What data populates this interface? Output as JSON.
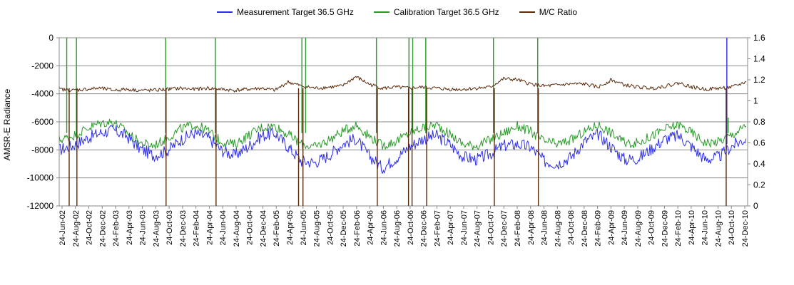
{
  "legend": [
    {
      "label": "Measurement Target 36.5 GHz",
      "color": "#2d2df0"
    },
    {
      "label": "Calibration Target 36.5 GHz",
      "color": "#2a9a2a"
    },
    {
      "label": "M/C Ratio",
      "color": "#5a2a0a"
    }
  ],
  "chart_data": {
    "type": "line",
    "title": "",
    "ylabel": "AMSR-E Radiance",
    "y2label": "",
    "ylim": [
      -12000,
      0
    ],
    "y2lim": [
      0,
      1.6
    ],
    "yticks": [
      "0",
      "-2000",
      "-4000",
      "-6000",
      "-8000",
      "-10000",
      "-12000"
    ],
    "y2ticks": [
      "1.6",
      "1.4",
      "1.2",
      "1",
      "0.8",
      "0.6",
      "0.4",
      "0.2",
      "0"
    ],
    "x_range": [
      "2002-06-24",
      "2010-12-31"
    ],
    "x_tick_labels": [
      "24-Jun-02",
      "24-Aug-02",
      "24-Oct-02",
      "24-Dec-02",
      "24-Feb-03",
      "24-Apr-03",
      "24-Jun-03",
      "24-Aug-03",
      "24-Oct-03",
      "24-Dec-03",
      "24-Feb-04",
      "24-Apr-04",
      "24-Jun-04",
      "24-Aug-04",
      "24-Oct-04",
      "24-Dec-04",
      "24-Feb-05",
      "24-Apr-05",
      "24-Jun-05",
      "24-Aug-05",
      "24-Oct-05",
      "24-Dec-05",
      "24-Feb-06",
      "24-Apr-06",
      "24-Jun-06",
      "24-Aug-06",
      "24-Oct-06",
      "24-Dec-06",
      "24-Feb-07",
      "24-Apr-07",
      "24-Jun-07",
      "24-Aug-07",
      "24-Oct-07",
      "24-Dec-07",
      "24-Feb-08",
      "24-Apr-08",
      "24-Jun-08",
      "24-Aug-08",
      "24-Oct-08",
      "24-Dec-08",
      "24-Feb-09",
      "24-Apr-09",
      "24-Jun-09",
      "24-Aug-09",
      "24-Oct-09",
      "24-Dec-09",
      "24-Feb-10",
      "24-Apr-10",
      "24-Jun-10",
      "24-Aug-10",
      "24-Oct-10",
      "24-Dec-10"
    ],
    "grid": true,
    "legend_position": "top",
    "series": [
      {
        "name": "Measurement Target 36.5 GHz",
        "axis": "left",
        "color": "#2d2df0",
        "x": [
          "2002-06-24",
          "2002-08-24",
          "2002-10-24",
          "2002-12-24",
          "2003-02-24",
          "2003-04-24",
          "2003-06-24",
          "2003-08-24",
          "2003-10-24",
          "2003-12-24",
          "2004-02-24",
          "2004-04-24",
          "2004-06-24",
          "2004-08-24",
          "2004-10-24",
          "2004-12-24",
          "2005-02-24",
          "2005-04-24",
          "2005-06-24",
          "2005-08-24",
          "2005-10-24",
          "2005-12-24",
          "2006-02-24",
          "2006-04-24",
          "2006-06-24",
          "2006-08-24",
          "2006-10-24",
          "2006-12-24",
          "2007-02-24",
          "2007-04-24",
          "2007-06-24",
          "2007-08-24",
          "2007-10-24",
          "2007-12-24",
          "2008-02-24",
          "2008-04-24",
          "2008-06-24",
          "2008-08-24",
          "2008-10-24",
          "2008-12-24",
          "2009-02-24",
          "2009-04-24",
          "2009-06-24",
          "2009-08-24",
          "2009-10-24",
          "2009-12-24",
          "2010-02-24",
          "2010-04-24",
          "2010-06-24",
          "2010-08-24",
          "2010-10-24",
          "2010-12-24"
        ],
        "y": [
          -8000,
          -7700,
          -7200,
          -6800,
          -6600,
          -7000,
          -7900,
          -8400,
          -8100,
          -7300,
          -6800,
          -7100,
          -8000,
          -8400,
          -7800,
          -7000,
          -6800,
          -7800,
          -8800,
          -8900,
          -8400,
          -7600,
          -7200,
          -8400,
          -9300,
          -8600,
          -7800,
          -7200,
          -7000,
          -7600,
          -8500,
          -8700,
          -8300,
          -7700,
          -7600,
          -7800,
          -8800,
          -9000,
          -8500,
          -7400,
          -6900,
          -7800,
          -8700,
          -8600,
          -7900,
          -7200,
          -7000,
          -7800,
          -8700,
          -8500,
          -7700,
          -7200
        ],
        "spikes": [
          {
            "x": "2010-09-28",
            "y": 0
          }
        ]
      },
      {
        "name": "Calibration Target 36.5 GHz",
        "axis": "left",
        "color": "#2a9a2a",
        "x": [
          "2002-06-24",
          "2002-08-24",
          "2002-10-24",
          "2002-12-24",
          "2003-02-24",
          "2003-04-24",
          "2003-06-24",
          "2003-08-24",
          "2003-10-24",
          "2003-12-24",
          "2004-02-24",
          "2004-04-24",
          "2004-06-24",
          "2004-08-24",
          "2004-10-24",
          "2004-12-24",
          "2005-02-24",
          "2005-04-24",
          "2005-06-24",
          "2005-08-24",
          "2005-10-24",
          "2005-12-24",
          "2006-02-24",
          "2006-04-24",
          "2006-06-24",
          "2006-08-24",
          "2006-10-24",
          "2006-12-24",
          "2007-02-24",
          "2007-04-24",
          "2007-06-24",
          "2007-08-24",
          "2007-10-24",
          "2007-12-24",
          "2008-02-24",
          "2008-04-24",
          "2008-06-24",
          "2008-08-24",
          "2008-10-24",
          "2008-12-24",
          "2009-02-24",
          "2009-04-24",
          "2009-06-24",
          "2009-08-24",
          "2009-10-24",
          "2009-12-24",
          "2010-02-24",
          "2010-04-24",
          "2010-06-24",
          "2010-08-24",
          "2010-10-24",
          "2010-12-24"
        ],
        "y": [
          -7300,
          -7000,
          -6500,
          -6100,
          -6000,
          -6700,
          -7500,
          -7700,
          -7200,
          -6500,
          -6200,
          -6600,
          -7400,
          -7600,
          -7000,
          -6400,
          -6300,
          -6900,
          -7600,
          -7800,
          -7300,
          -6700,
          -6200,
          -7000,
          -7700,
          -7400,
          -6800,
          -6400,
          -6200,
          -6900,
          -7600,
          -7700,
          -7300,
          -6800,
          -6300,
          -6700,
          -7400,
          -7600,
          -7300,
          -6700,
          -6200,
          -6800,
          -7500,
          -7500,
          -7000,
          -6500,
          -6200,
          -6800,
          -7500,
          -7400,
          -6900,
          -6300
        ],
        "spikes": [
          {
            "x": "2002-07-28",
            "y": 0
          },
          {
            "x": "2002-09-10",
            "y": 0
          },
          {
            "x": "2003-10-18",
            "y": 0
          },
          {
            "x": "2004-05-30",
            "y": 0
          },
          {
            "x": "2005-06-25",
            "y": 0
          },
          {
            "x": "2005-07-12",
            "y": 0
          },
          {
            "x": "2006-05-28",
            "y": 0
          },
          {
            "x": "2006-10-22",
            "y": 0
          },
          {
            "x": "2006-11-08",
            "y": 0
          },
          {
            "x": "2007-01-06",
            "y": 0
          },
          {
            "x": "2007-11-08",
            "y": 0
          },
          {
            "x": "2008-05-26",
            "y": 0
          },
          {
            "x": "2010-10-04",
            "y": -5700
          }
        ]
      },
      {
        "name": "M/C Ratio",
        "axis": "right",
        "color": "#5a2a0a",
        "x": [
          "2002-06-24",
          "2002-08-24",
          "2002-10-24",
          "2002-12-24",
          "2003-02-24",
          "2003-04-24",
          "2003-06-24",
          "2003-08-24",
          "2003-10-24",
          "2003-12-24",
          "2004-02-24",
          "2004-04-24",
          "2004-06-24",
          "2004-08-24",
          "2004-10-24",
          "2004-12-24",
          "2005-02-24",
          "2005-04-24",
          "2005-06-24",
          "2005-08-24",
          "2005-10-24",
          "2005-12-24",
          "2006-02-24",
          "2006-04-24",
          "2006-06-24",
          "2006-08-24",
          "2006-10-24",
          "2006-12-24",
          "2007-02-24",
          "2007-04-24",
          "2007-06-24",
          "2007-08-24",
          "2007-10-24",
          "2007-12-24",
          "2008-02-24",
          "2008-04-24",
          "2008-06-24",
          "2008-08-24",
          "2008-10-24",
          "2008-12-24",
          "2009-02-24",
          "2009-04-24",
          "2009-06-24",
          "2009-08-24",
          "2009-10-24",
          "2009-12-24",
          "2010-02-24",
          "2010-04-24",
          "2010-06-24",
          "2010-08-24",
          "2010-10-24",
          "2010-12-24"
        ],
        "y": [
          1.11,
          1.1,
          1.11,
          1.12,
          1.1,
          1.11,
          1.1,
          1.1,
          1.11,
          1.12,
          1.11,
          1.12,
          1.11,
          1.1,
          1.11,
          1.12,
          1.1,
          1.18,
          1.14,
          1.12,
          1.13,
          1.14,
          1.23,
          1.16,
          1.12,
          1.13,
          1.12,
          1.13,
          1.12,
          1.11,
          1.11,
          1.12,
          1.13,
          1.21,
          1.2,
          1.16,
          1.14,
          1.15,
          1.16,
          1.16,
          1.13,
          1.2,
          1.15,
          1.13,
          1.12,
          1.14,
          1.17,
          1.13,
          1.11,
          1.12,
          1.13,
          1.18
        ],
        "spikes": [
          {
            "x": "2002-08-08",
            "y": 0
          },
          {
            "x": "2002-09-12",
            "y": 0
          },
          {
            "x": "2003-10-20",
            "y": 0
          },
          {
            "x": "2004-06-02",
            "y": 0
          },
          {
            "x": "2005-06-10",
            "y": 0
          },
          {
            "x": "2005-06-30",
            "y": 0
          },
          {
            "x": "2006-06-01",
            "y": 0
          },
          {
            "x": "2006-10-20",
            "y": 0
          },
          {
            "x": "2006-11-05",
            "y": 0
          },
          {
            "x": "2007-01-10",
            "y": 0
          },
          {
            "x": "2007-11-12",
            "y": 0
          },
          {
            "x": "2008-05-29",
            "y": 0
          },
          {
            "x": "2010-09-25",
            "y": 0
          }
        ]
      }
    ]
  }
}
